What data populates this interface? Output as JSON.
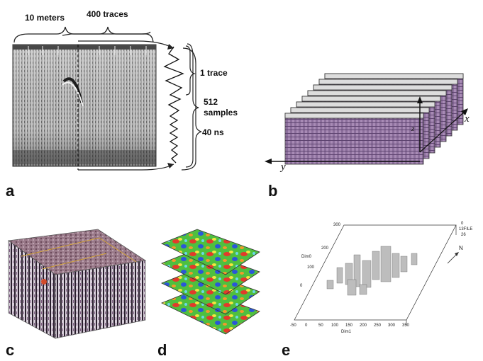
{
  "figure": {
    "panel_labels": [
      "a",
      "b",
      "c",
      "d",
      "e"
    ],
    "panel_a": {
      "label_10m": "10 meters",
      "label_traces": "400 traces",
      "label_1trace": "1 trace",
      "label_512": "512",
      "label_samples": "samples",
      "label_40ns": "40 ns"
    },
    "panel_b": {
      "axis_x": "x",
      "axis_y": "y",
      "axis_z": "z"
    },
    "panel_e": {
      "y_ticks": [
        "300",
        "200",
        "100",
        "0"
      ],
      "y_label": "Dim0",
      "x_ticks": [
        "-50",
        "0",
        "50",
        "100",
        "150",
        "200",
        "250",
        "300",
        "350"
      ],
      "x_label": "Dim1",
      "z_ticks": [
        "0",
        "13FILE",
        "26"
      ],
      "north": "N"
    }
  }
}
